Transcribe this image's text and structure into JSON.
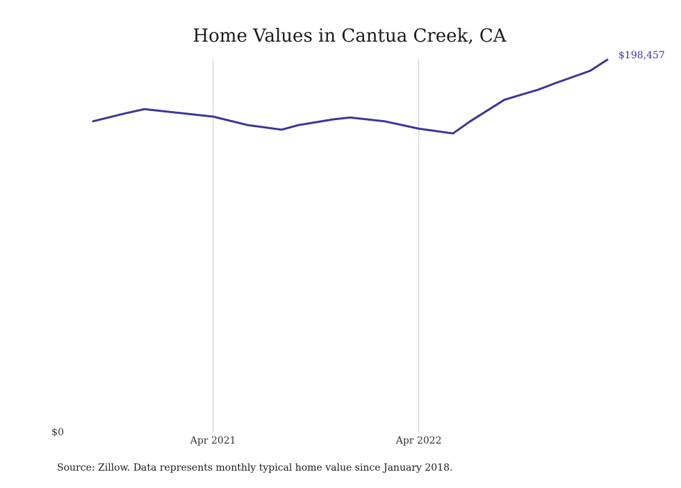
{
  "chart_data": {
    "type": "line",
    "title": "Home Values in Cantua Creek, CA",
    "xlabel": "",
    "ylabel": "",
    "grid": "vertical",
    "x": [
      "2020-09",
      "2020-11",
      "2020-12",
      "2021-04",
      "2021-06",
      "2021-08",
      "2021-09",
      "2021-11",
      "2021-12",
      "2022-02",
      "2022-04",
      "2022-06",
      "2022-07",
      "2022-09",
      "2022-11",
      "2022-12",
      "2023-02",
      "2023-03"
    ],
    "series": [
      {
        "values": [
          165500,
          170000,
          172000,
          168000,
          163500,
          161000,
          163500,
          166500,
          167500,
          165500,
          161500,
          159000,
          165500,
          177000,
          182500,
          186000,
          192500,
          198457
        ],
        "end_label": "$198,457"
      }
    ],
    "x_ticks": [
      {
        "label": "Apr 2021",
        "x": "2021-04"
      },
      {
        "label": "Apr 2022",
        "x": "2022-04"
      }
    ],
    "y_ticks": [
      {
        "label": "$0",
        "value": 0
      }
    ],
    "ylim": [
      0,
      198457
    ],
    "line_color": "#3b3599",
    "grid_color": "#c8c8c8",
    "source": "Source: Zillow. Data represents monthly typical home value since January 2018."
  }
}
